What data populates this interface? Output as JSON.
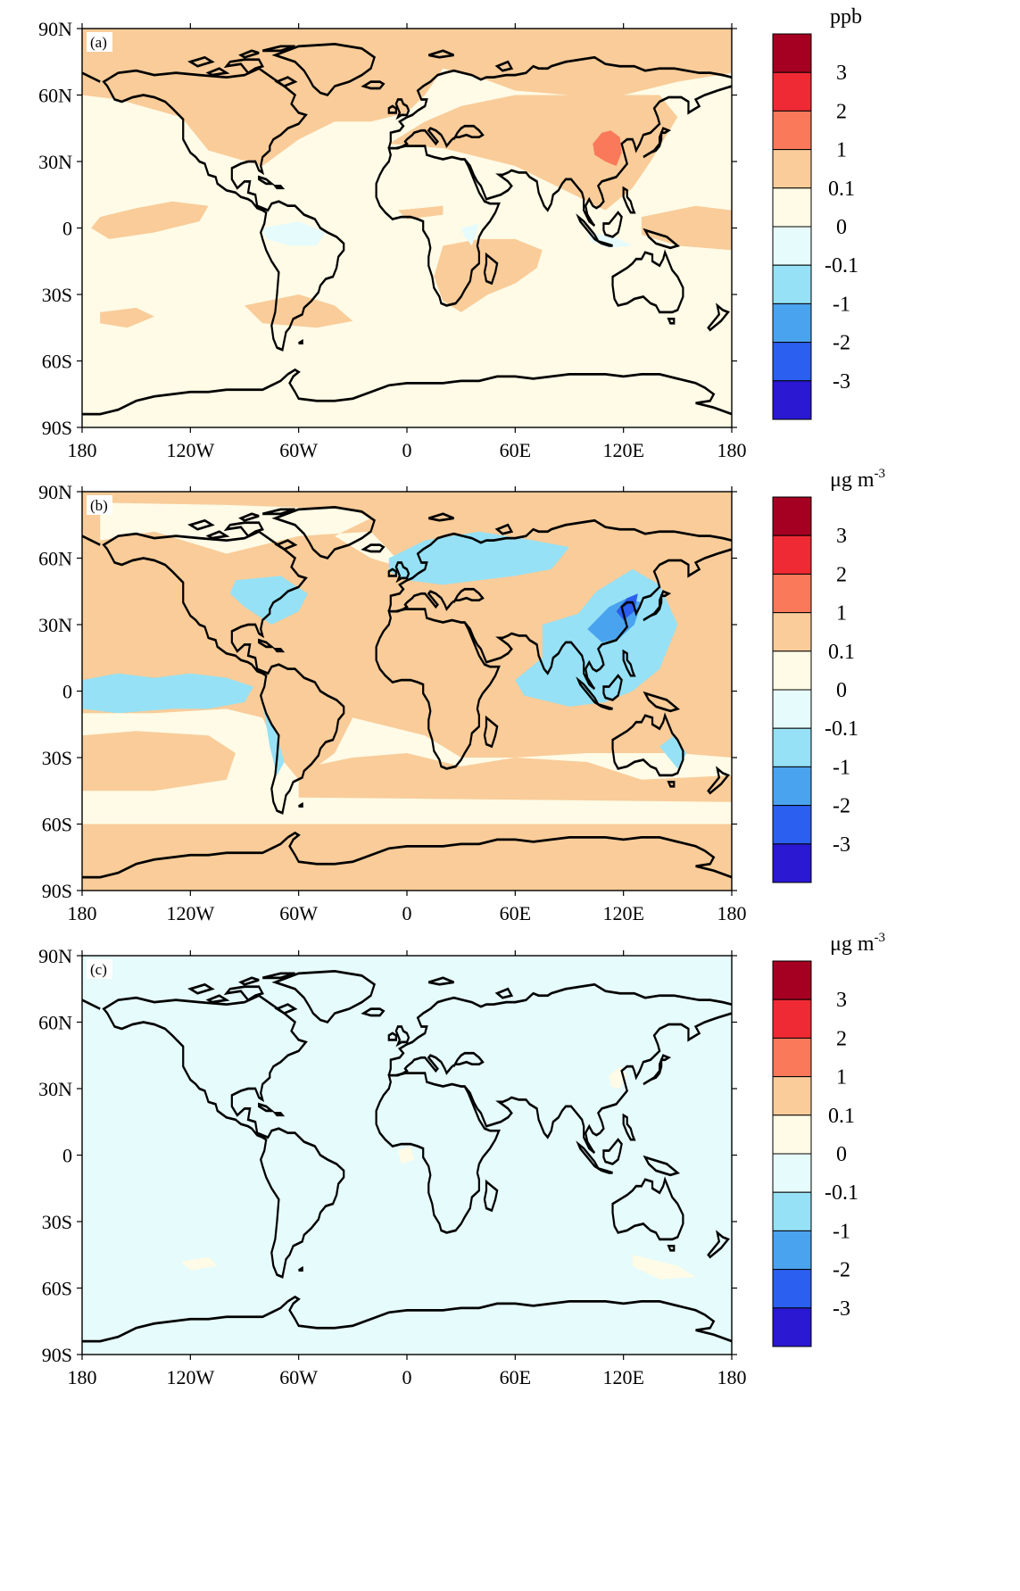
{
  "panels": [
    {
      "id": "a",
      "label": "(a)",
      "unit_main": "ppb",
      "unit_sup": "",
      "background_category": "pale_yellow"
    },
    {
      "id": "b",
      "label": "(b)",
      "unit_main": "μg m",
      "unit_sup": "-3",
      "background_category": "orange"
    },
    {
      "id": "c",
      "label": "(c)",
      "unit_main": "μg m",
      "unit_sup": "-3",
      "background_category": "light_cyan"
    }
  ],
  "axes": {
    "lat_ticks": [
      "90N",
      "60N",
      "30N",
      "0",
      "30S",
      "60S",
      "90S"
    ],
    "lon_ticks": [
      "180",
      "120W",
      "60W",
      "0",
      "60E",
      "120E",
      "180"
    ]
  },
  "colorbar": {
    "labels": [
      "3",
      "2",
      "1",
      "0.1",
      "0",
      "-0.1",
      "-1",
      "-2",
      "-3"
    ],
    "colors": [
      "#a50021",
      "#ef2a34",
      "#f9795a",
      "#f9cc99",
      "#fffbe6",
      "#e6fbfb",
      "#96e1f5",
      "#4aa3ee",
      "#2a5ff0",
      "#2a18d2"
    ]
  },
  "category_colors": {
    "pale_yellow": "#fffbe6",
    "orange": "#f9cc99",
    "light_cyan": "#e6fbfb",
    "blue": "#96e1f5",
    "mid_blue": "#4aa3ee",
    "red": "#f9795a",
    "dark_blue": "#2a5ff0"
  }
}
